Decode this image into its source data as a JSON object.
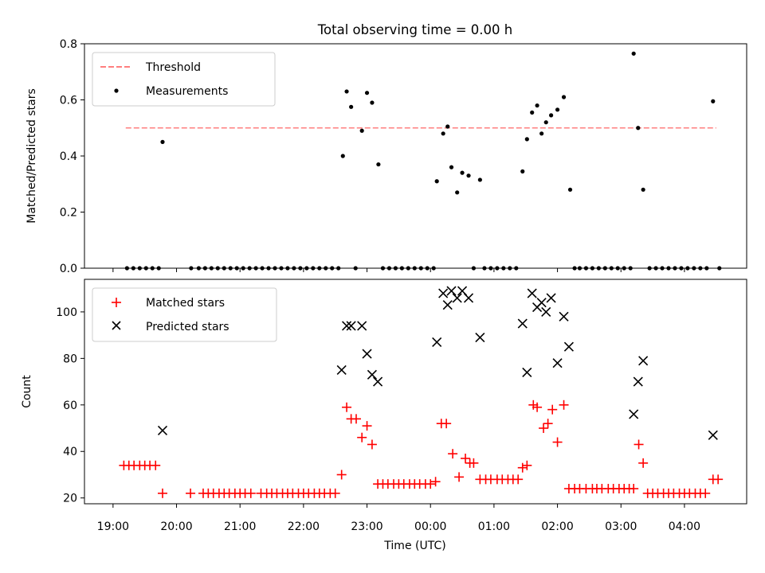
{
  "chart_data": [
    {
      "type": "scatter",
      "title": "Total observing time = 0.00 h",
      "xlabel": "",
      "ylabel": "Matched/Predicted stars",
      "ylim": [
        0,
        0.8
      ],
      "yticks": [
        "0.0",
        "0.2",
        "0.4",
        "0.6",
        "0.8"
      ],
      "xlim_hours": [
        18.55,
        28.98
      ],
      "legend": {
        "placement": "upper-left",
        "entries": [
          "Threshold",
          "Measurements"
        ]
      },
      "threshold": {
        "name": "Threshold",
        "y": 0.5,
        "x_start": 19.2,
        "x_end": 28.5,
        "color": "#ff7f7f",
        "style": "dashed"
      },
      "series": [
        {
          "name": "Measurements",
          "color": "#000000",
          "x": [
            19.22,
            19.32,
            19.42,
            19.52,
            19.62,
            19.72,
            19.78,
            20.23,
            20.35,
            20.45,
            20.55,
            20.65,
            20.75,
            20.85,
            20.95,
            21.05,
            21.15,
            21.25,
            21.35,
            21.45,
            21.55,
            21.65,
            21.75,
            21.85,
            21.95,
            22.05,
            22.15,
            22.25,
            22.35,
            22.45,
            22.55,
            22.62,
            22.68,
            22.75,
            22.82,
            22.92,
            23.0,
            23.08,
            23.18,
            23.25,
            23.35,
            23.45,
            23.55,
            23.65,
            23.75,
            23.85,
            23.95,
            24.05,
            24.1,
            24.2,
            24.27,
            24.33,
            24.42,
            24.5,
            24.6,
            24.68,
            24.78,
            24.85,
            24.95,
            25.05,
            25.15,
            25.25,
            25.35,
            25.45,
            25.52,
            25.6,
            25.68,
            25.75,
            25.82,
            25.9,
            26.0,
            26.1,
            26.2,
            26.27,
            26.35,
            26.45,
            26.55,
            26.65,
            26.75,
            26.85,
            26.95,
            27.05,
            27.15,
            27.2,
            27.27,
            27.35,
            27.45,
            27.55,
            27.65,
            27.75,
            27.85,
            27.95,
            28.05,
            28.15,
            28.25,
            28.35,
            28.45,
            28.55
          ],
          "y": [
            0,
            0,
            0,
            0,
            0,
            0,
            0.45,
            0,
            0,
            0,
            0,
            0,
            0,
            0,
            0,
            0,
            0,
            0,
            0,
            0,
            0,
            0,
            0,
            0,
            0,
            0,
            0,
            0,
            0,
            0,
            0,
            0.4,
            0.63,
            0.575,
            0,
            0.49,
            0.625,
            0.59,
            0.37,
            0,
            0,
            0,
            0,
            0,
            0,
            0,
            0,
            0,
            0.31,
            0.48,
            0.505,
            0.36,
            0.27,
            0.34,
            0.33,
            0,
            0.315,
            0,
            0,
            0,
            0,
            0,
            0,
            0.345,
            0.46,
            0.555,
            0.58,
            0.48,
            0.52,
            0.545,
            0.565,
            0.61,
            0.28,
            0,
            0,
            0,
            0,
            0,
            0,
            0,
            0,
            0,
            0,
            0.765,
            0.5,
            0.28,
            0,
            0,
            0,
            0,
            0,
            0,
            0,
            0,
            0,
            0,
            0.595,
            0
          ]
        }
      ]
    },
    {
      "type": "scatter",
      "title": "",
      "xlabel": "Time (UTC)",
      "ylabel": "Count",
      "ylim": [
        17.5,
        114
      ],
      "yticks": [
        "20",
        "40",
        "60",
        "80",
        "100"
      ],
      "xticks": [
        "19:00",
        "20:00",
        "21:00",
        "22:00",
        "23:00",
        "00:00",
        "01:00",
        "02:00",
        "03:00",
        "04:00"
      ],
      "xlim_hours": [
        18.55,
        28.98
      ],
      "legend": {
        "placement": "upper-left",
        "entries": [
          "Matched stars",
          "Predicted stars"
        ]
      },
      "series": [
        {
          "name": "Matched stars",
          "marker": "plus",
          "color": "#ff0000",
          "x": [
            19.17,
            19.25,
            19.33,
            19.42,
            19.5,
            19.58,
            19.67,
            19.78,
            20.22,
            20.42,
            20.5,
            20.58,
            20.67,
            20.75,
            20.83,
            20.92,
            21.0,
            21.08,
            21.17,
            21.33,
            21.42,
            21.5,
            21.58,
            21.67,
            21.75,
            21.83,
            21.92,
            22.0,
            22.08,
            22.17,
            22.25,
            22.33,
            22.42,
            22.5,
            22.6,
            22.68,
            22.75,
            22.83,
            22.92,
            23.0,
            23.08,
            23.17,
            23.25,
            23.33,
            23.42,
            23.5,
            23.58,
            23.67,
            23.75,
            23.83,
            23.92,
            24.0,
            24.08,
            24.17,
            24.25,
            24.35,
            24.45,
            24.55,
            24.62,
            24.68,
            24.78,
            24.87,
            24.95,
            25.05,
            25.13,
            25.22,
            25.3,
            25.38,
            25.45,
            25.52,
            25.62,
            25.68,
            25.78,
            25.85,
            25.92,
            26.0,
            26.1,
            26.18,
            26.27,
            26.35,
            26.45,
            26.55,
            26.62,
            26.7,
            26.8,
            26.88,
            26.97,
            27.05,
            27.13,
            27.2,
            27.28,
            27.35,
            27.42,
            27.5,
            27.58,
            27.67,
            27.75,
            27.83,
            27.92,
            28.0,
            28.08,
            28.17,
            28.25,
            28.33,
            28.45,
            28.53
          ],
          "y": [
            34,
            34,
            34,
            34,
            34,
            34,
            34,
            22,
            22,
            22,
            22,
            22,
            22,
            22,
            22,
            22,
            22,
            22,
            22,
            22,
            22,
            22,
            22,
            22,
            22,
            22,
            22,
            22,
            22,
            22,
            22,
            22,
            22,
            22,
            30,
            59,
            54,
            54,
            46,
            51,
            43,
            26,
            26,
            26,
            26,
            26,
            26,
            26,
            26,
            26,
            26,
            26,
            27,
            52,
            52,
            39,
            29,
            37,
            35,
            35,
            28,
            28,
            28,
            28,
            28,
            28,
            28,
            28,
            33,
            34,
            60,
            59,
            50,
            52,
            58,
            44,
            60,
            24,
            24,
            24,
            24,
            24,
            24,
            24,
            24,
            24,
            24,
            24,
            24,
            24,
            43,
            35,
            22,
            22,
            22,
            22,
            22,
            22,
            22,
            22,
            22,
            22,
            22,
            22,
            28,
            28
          ]
        },
        {
          "name": "Predicted stars",
          "marker": "x",
          "color": "#000000",
          "x": [
            19.78,
            22.6,
            22.68,
            22.75,
            22.92,
            23.0,
            23.08,
            23.17,
            24.1,
            24.2,
            24.27,
            24.33,
            24.42,
            24.5,
            24.6,
            24.78,
            25.45,
            25.52,
            25.6,
            25.68,
            25.75,
            25.82,
            25.9,
            26.0,
            26.1,
            26.18,
            27.2,
            27.27,
            27.35,
            28.45
          ],
          "y": [
            49,
            75,
            94,
            94,
            94,
            82,
            73,
            70,
            87,
            108,
            103,
            109,
            106,
            109,
            106,
            89,
            95,
            74,
            108,
            102,
            104,
            100,
            106,
            78,
            98,
            85,
            56,
            70,
            79,
            47
          ]
        }
      ]
    }
  ]
}
